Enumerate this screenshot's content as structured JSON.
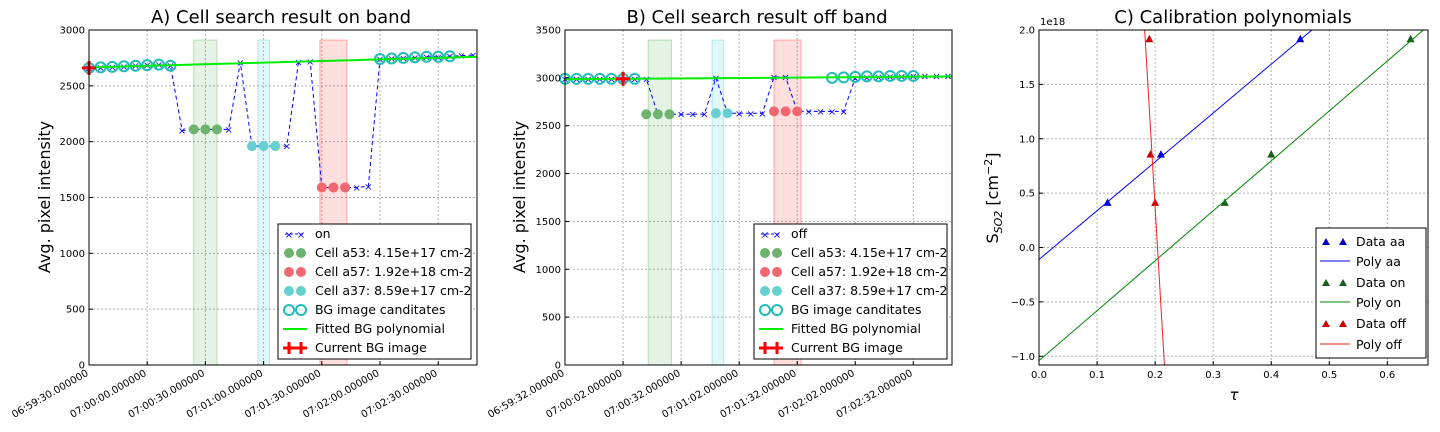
{
  "chart_data": [
    {
      "type": "line",
      "title": "A) Cell search result on band",
      "xlabel": "",
      "ylabel": "Avg. pixel intensity",
      "ylim": [
        0,
        3000
      ],
      "yticks": [
        0,
        500,
        1000,
        1500,
        2000,
        2500,
        3000
      ],
      "xlim": [
        0,
        200
      ],
      "xticks": [
        {
          "t": 0,
          "label": "06:59:30.000000"
        },
        {
          "t": 30,
          "label": "07:00:00.000000"
        },
        {
          "t": 60,
          "label": "07:00:30.000000"
        },
        {
          "t": 90,
          "label": "07:01:00.000000"
        },
        {
          "t": 120,
          "label": "07:01:30.000000"
        },
        {
          "t": 150,
          "label": "07:02:00.000000"
        },
        {
          "t": 180,
          "label": "07:02:30.000000"
        }
      ],
      "bands": [
        {
          "x0": 54,
          "x1": 66,
          "color": "#2ca02c"
        },
        {
          "x0": 87,
          "x1": 93,
          "color": "#17becf"
        },
        {
          "x0": 119,
          "x1": 133,
          "color": "#ff0000"
        }
      ],
      "series": [
        {
          "name": "on",
          "kind": "line",
          "color": "#0000ff",
          "x": [
            0,
            6,
            12,
            18,
            24,
            30,
            36,
            42,
            48,
            54,
            60,
            66,
            72,
            78,
            84,
            90,
            96,
            102,
            108,
            114,
            120,
            126,
            132,
            138,
            144,
            150,
            156,
            162,
            168,
            174,
            180,
            186,
            192,
            198
          ],
          "y": [
            2660,
            2665,
            2670,
            2675,
            2680,
            2685,
            2690,
            2680,
            2100,
            2110,
            2110,
            2110,
            2110,
            2710,
            1960,
            1960,
            1960,
            1960,
            2715,
            2720,
            1590,
            1590,
            1590,
            1590,
            1600,
            2740,
            2745,
            2750,
            2755,
            2760,
            2760,
            2765,
            2770,
            2775
          ]
        },
        {
          "name": "Cell a53: 4.15e+17 cm-2",
          "kind": "dots",
          "color": "#6db36d",
          "x": [
            54,
            60,
            66
          ],
          "y": [
            2110,
            2110,
            2110
          ]
        },
        {
          "name": "Cell a57: 1.92e+18 cm-2",
          "kind": "dots",
          "color": "#f26670",
          "x": [
            120,
            126,
            132
          ],
          "y": [
            1590,
            1590,
            1590
          ]
        },
        {
          "name": "Cell a37: 8.59e+17 cm-2",
          "kind": "dots",
          "color": "#66d0d0",
          "x": [
            84,
            90,
            96
          ],
          "y": [
            1960,
            1960,
            1960
          ]
        },
        {
          "name": "BG image canditates",
          "kind": "rings",
          "color": "#22bbbb",
          "x": [
            0,
            6,
            12,
            18,
            24,
            30,
            36,
            42,
            150,
            156,
            162,
            168,
            174,
            180,
            186
          ],
          "y": [
            2660,
            2665,
            2670,
            2675,
            2680,
            2685,
            2690,
            2680,
            2740,
            2745,
            2750,
            2755,
            2760,
            2760,
            2765
          ]
        },
        {
          "name": "Fitted BG polynomial",
          "kind": "fit",
          "color": "#00ee00",
          "x": [
            0,
            200
          ],
          "y": [
            2665,
            2760
          ]
        },
        {
          "name": "Current BG image",
          "kind": "cross",
          "color": "#ff0000",
          "x": [
            0
          ],
          "y": [
            2660
          ]
        }
      ],
      "legend": "lower right"
    },
    {
      "type": "line",
      "title": "B) Cell search result off band",
      "xlabel": "",
      "ylabel": "Avg. pixel intensity",
      "ylim": [
        0,
        3500
      ],
      "yticks": [
        0,
        500,
        1000,
        1500,
        2000,
        2500,
        3000,
        3500
      ],
      "xlim": [
        0,
        200
      ],
      "xticks": [
        {
          "t": 0,
          "label": "06:59:32.000000"
        },
        {
          "t": 30,
          "label": "07:00:02.000000"
        },
        {
          "t": 60,
          "label": "07:00:32.000000"
        },
        {
          "t": 90,
          "label": "07:01:02.000000"
        },
        {
          "t": 120,
          "label": "07:01:32.000000"
        },
        {
          "t": 150,
          "label": "07:02:02.000000"
        },
        {
          "t": 180,
          "label": "07:02:32.000000"
        }
      ],
      "bands": [
        {
          "x0": 43,
          "x1": 55,
          "color": "#2ca02c"
        },
        {
          "x0": 76,
          "x1": 82,
          "color": "#17becf"
        },
        {
          "x0": 108,
          "x1": 122,
          "color": "#ff0000"
        }
      ],
      "series": [
        {
          "name": "off",
          "kind": "line",
          "color": "#0000ff",
          "x": [
            0,
            6,
            12,
            18,
            24,
            30,
            36,
            42,
            48,
            54,
            60,
            66,
            72,
            78,
            84,
            90,
            96,
            102,
            108,
            114,
            120,
            126,
            132,
            138,
            144,
            150,
            156,
            162,
            168,
            174,
            180,
            186,
            192,
            198
          ],
          "y": [
            2990,
            2990,
            2990,
            2990,
            2990,
            2990,
            2990,
            2990,
            2620,
            2620,
            2620,
            2620,
            2620,
            3000,
            2630,
            2630,
            2630,
            2630,
            3010,
            3010,
            2650,
            2650,
            2650,
            2650,
            2650,
            3000,
            3005,
            3010,
            3015,
            3015,
            3020,
            3020,
            3020,
            3020
          ]
        },
        {
          "name": "Cell a53: 4.15e+17 cm-2",
          "kind": "dots",
          "color": "#6db36d",
          "x": [
            42,
            48,
            54
          ],
          "y": [
            2620,
            2620,
            2620
          ]
        },
        {
          "name": "Cell a57: 1.92e+18 cm-2",
          "kind": "dots",
          "color": "#f26670",
          "x": [
            108,
            114,
            120
          ],
          "y": [
            2650,
            2650,
            2650
          ]
        },
        {
          "name": "Cell a37: 8.59e+17 cm-2",
          "kind": "dots",
          "color": "#66d0d0",
          "x": [
            78,
            84
          ],
          "y": [
            2630,
            2630
          ]
        },
        {
          "name": "BG image canditates",
          "kind": "rings",
          "color": "#22bbbb",
          "x": [
            0,
            6,
            12,
            18,
            24,
            30,
            36,
            138,
            144,
            150,
            156,
            162,
            168,
            174,
            180
          ],
          "y": [
            2990,
            2990,
            2990,
            2990,
            2990,
            2990,
            2990,
            3000,
            3005,
            3010,
            3015,
            3015,
            3020,
            3020,
            3020
          ]
        },
        {
          "name": "Fitted BG polynomial",
          "kind": "fit",
          "color": "#00ee00",
          "x": [
            0,
            200
          ],
          "y": [
            2985,
            3015
          ]
        },
        {
          "name": "Current BG image",
          "kind": "cross",
          "color": "#ff0000",
          "x": [
            30
          ],
          "y": [
            2990
          ]
        }
      ],
      "legend": "lower right"
    },
    {
      "type": "scatter",
      "title": "C) Calibration polynomials",
      "xlabel": "τ",
      "ylabel": "S",
      "ylabel_sub": "SO2",
      "ylabel_unit": " [cm",
      "ylabel_sup": "−2",
      "ylabel_end": "]",
      "offset_text": "1e18",
      "xlim": [
        0,
        0.67
      ],
      "ylim": [
        -1.08,
        2.0
      ],
      "xticks": [
        {
          "v": 0,
          "label": "0.0"
        },
        {
          "v": 0.1,
          "label": "0.1"
        },
        {
          "v": 0.2,
          "label": "0.2"
        },
        {
          "v": 0.3,
          "label": "0.3"
        },
        {
          "v": 0.4,
          "label": "0.4"
        },
        {
          "v": 0.5,
          "label": "0.5"
        },
        {
          "v": 0.6,
          "label": "0.6"
        }
      ],
      "yticks": [
        {
          "v": -1.0,
          "label": "−1.0"
        },
        {
          "v": -0.5,
          "label": "−0.5"
        },
        {
          "v": 0,
          "label": "0.0"
        },
        {
          "v": 0.5,
          "label": "0.5"
        },
        {
          "v": 1.0,
          "label": "1.0"
        },
        {
          "v": 1.5,
          "label": "1.5"
        },
        {
          "v": 2.0,
          "label": "2.0"
        }
      ],
      "series": [
        {
          "name": "Data aa",
          "kind": "tri",
          "color": "#0000cc",
          "x": [
            0.118,
            0.21,
            0.45
          ],
          "y": [
            0.415,
            0.859,
            1.92
          ]
        },
        {
          "name": "Poly aa",
          "kind": "poly",
          "color": "#0000ff",
          "x": [
            0,
            0.47
          ],
          "y": [
            -0.11,
            2.0
          ]
        },
        {
          "name": "Data on",
          "kind": "tri",
          "color": "#1a5c1a",
          "x": [
            0.32,
            0.4,
            0.64
          ],
          "y": [
            0.415,
            0.859,
            1.92
          ]
        },
        {
          "name": "Poly on",
          "kind": "poly",
          "color": "#008800",
          "x": [
            0,
            0.662
          ],
          "y": [
            -1.04,
            2.0
          ]
        },
        {
          "name": "Data off",
          "kind": "tri",
          "color": "#cc0000",
          "x": [
            0.19,
            0.192,
            0.2
          ],
          "y": [
            1.92,
            0.859,
            0.415
          ]
        },
        {
          "name": "Poly off",
          "kind": "poly",
          "color": "#ee2222",
          "x": [
            0.182,
            0.216
          ],
          "y": [
            2.0,
            -1.08
          ]
        }
      ],
      "legend": "lower right"
    }
  ]
}
